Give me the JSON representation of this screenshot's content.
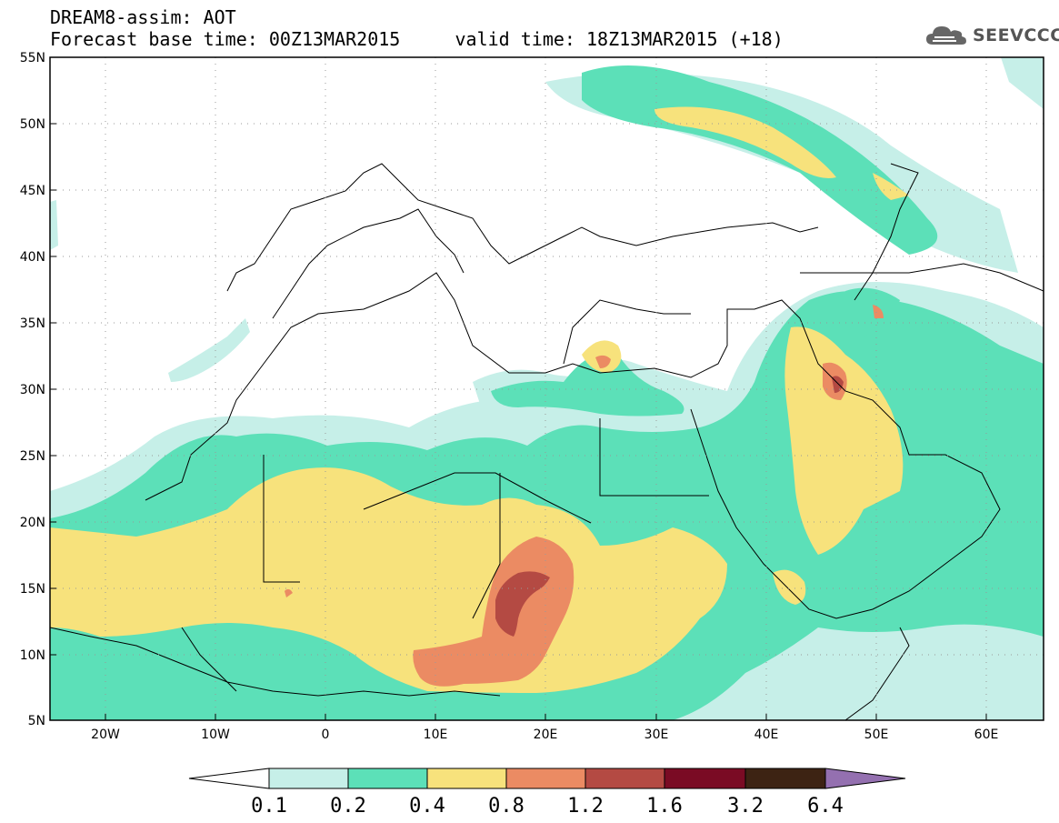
{
  "header": {
    "line1": "DREAM8-assim: AOT",
    "line2": "Forecast base time: 00Z13MAR2015     valid time: 18Z13MAR2015 (+18)"
  },
  "logo": {
    "text": "SEEVCCC",
    "icon": "cloud-logo-icon"
  },
  "map": {
    "lon_range": [
      -25,
      65
    ],
    "lat_range": [
      5,
      55
    ],
    "grid": "dotted",
    "lat_ticks": [
      "55N",
      "50N",
      "45N",
      "40N",
      "35N",
      "30N",
      "25N",
      "20N",
      "15N",
      "10N",
      "5N"
    ],
    "lon_ticks": [
      "20W",
      "10W",
      "0",
      "10E",
      "20E",
      "30E",
      "40E",
      "50E",
      "60E"
    ]
  },
  "colorbar": {
    "labels": [
      "0.1",
      "0.2",
      "0.4",
      "0.8",
      "1.2",
      "1.6",
      "3.2",
      "6.4"
    ],
    "colors": [
      "#ffffff",
      "#c6efe8",
      "#5ce0b8",
      "#f7e27c",
      "#eb8b63",
      "#b44a43",
      "#7a0b24",
      "#3d2313",
      "#9470b0"
    ]
  },
  "colors": {
    "c01": "#c6efe8",
    "c02": "#5ce0b8",
    "c04": "#f7e27c",
    "c08": "#eb8b63",
    "c12": "#b44a43",
    "coast": "#000000"
  }
}
